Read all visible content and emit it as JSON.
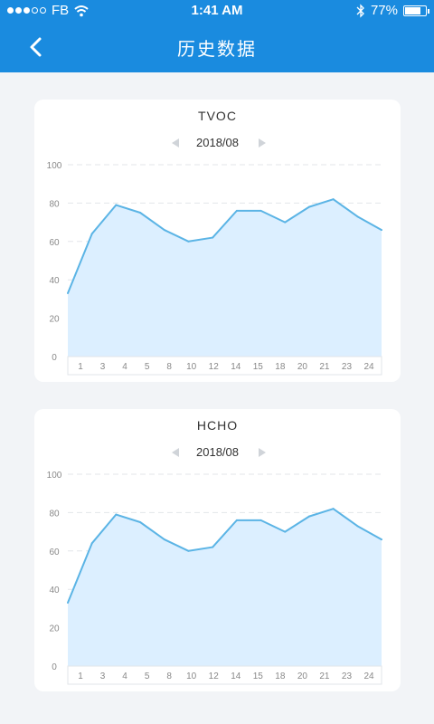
{
  "status_bar": {
    "carrier": "FB",
    "time": "1:41 AM",
    "battery": "77%",
    "battery_level": 0.77,
    "signal_bars": 5,
    "signal_filled": 3,
    "icons": [
      "signal-dots-icon",
      "wifi-icon",
      "bluetooth-icon",
      "battery-icon"
    ]
  },
  "nav": {
    "title": "历史数据",
    "back_icon": "chevron-left-icon"
  },
  "colors": {
    "nav_bg": "#1a8bdf",
    "line": "#5bb4e5",
    "area": "#dcefff",
    "grid": "#e3e6ea",
    "axis_text": "#888888"
  },
  "chart_data": [
    {
      "type": "area",
      "title": "TVOC",
      "month": "2018/08",
      "ylim": [
        0,
        100
      ],
      "yticks": [
        0,
        20,
        40,
        60,
        80,
        100
      ],
      "categories": [
        "1",
        "3",
        "4",
        "5",
        "8",
        "10",
        "12",
        "14",
        "15",
        "18",
        "20",
        "21",
        "23",
        "24"
      ],
      "values": [
        33,
        64,
        79,
        75,
        66,
        60,
        62,
        76,
        76,
        70,
        78,
        82,
        73,
        66
      ],
      "grid": true
    },
    {
      "type": "area",
      "title": "HCHO",
      "month": "2018/08",
      "ylim": [
        0,
        100
      ],
      "yticks": [
        0,
        20,
        40,
        60,
        80,
        100
      ],
      "categories": [
        "1",
        "3",
        "4",
        "5",
        "8",
        "10",
        "12",
        "14",
        "15",
        "18",
        "20",
        "21",
        "23",
        "24"
      ],
      "values": [
        33,
        64,
        79,
        75,
        66,
        60,
        62,
        76,
        76,
        70,
        78,
        82,
        73,
        66
      ],
      "grid": true
    }
  ]
}
